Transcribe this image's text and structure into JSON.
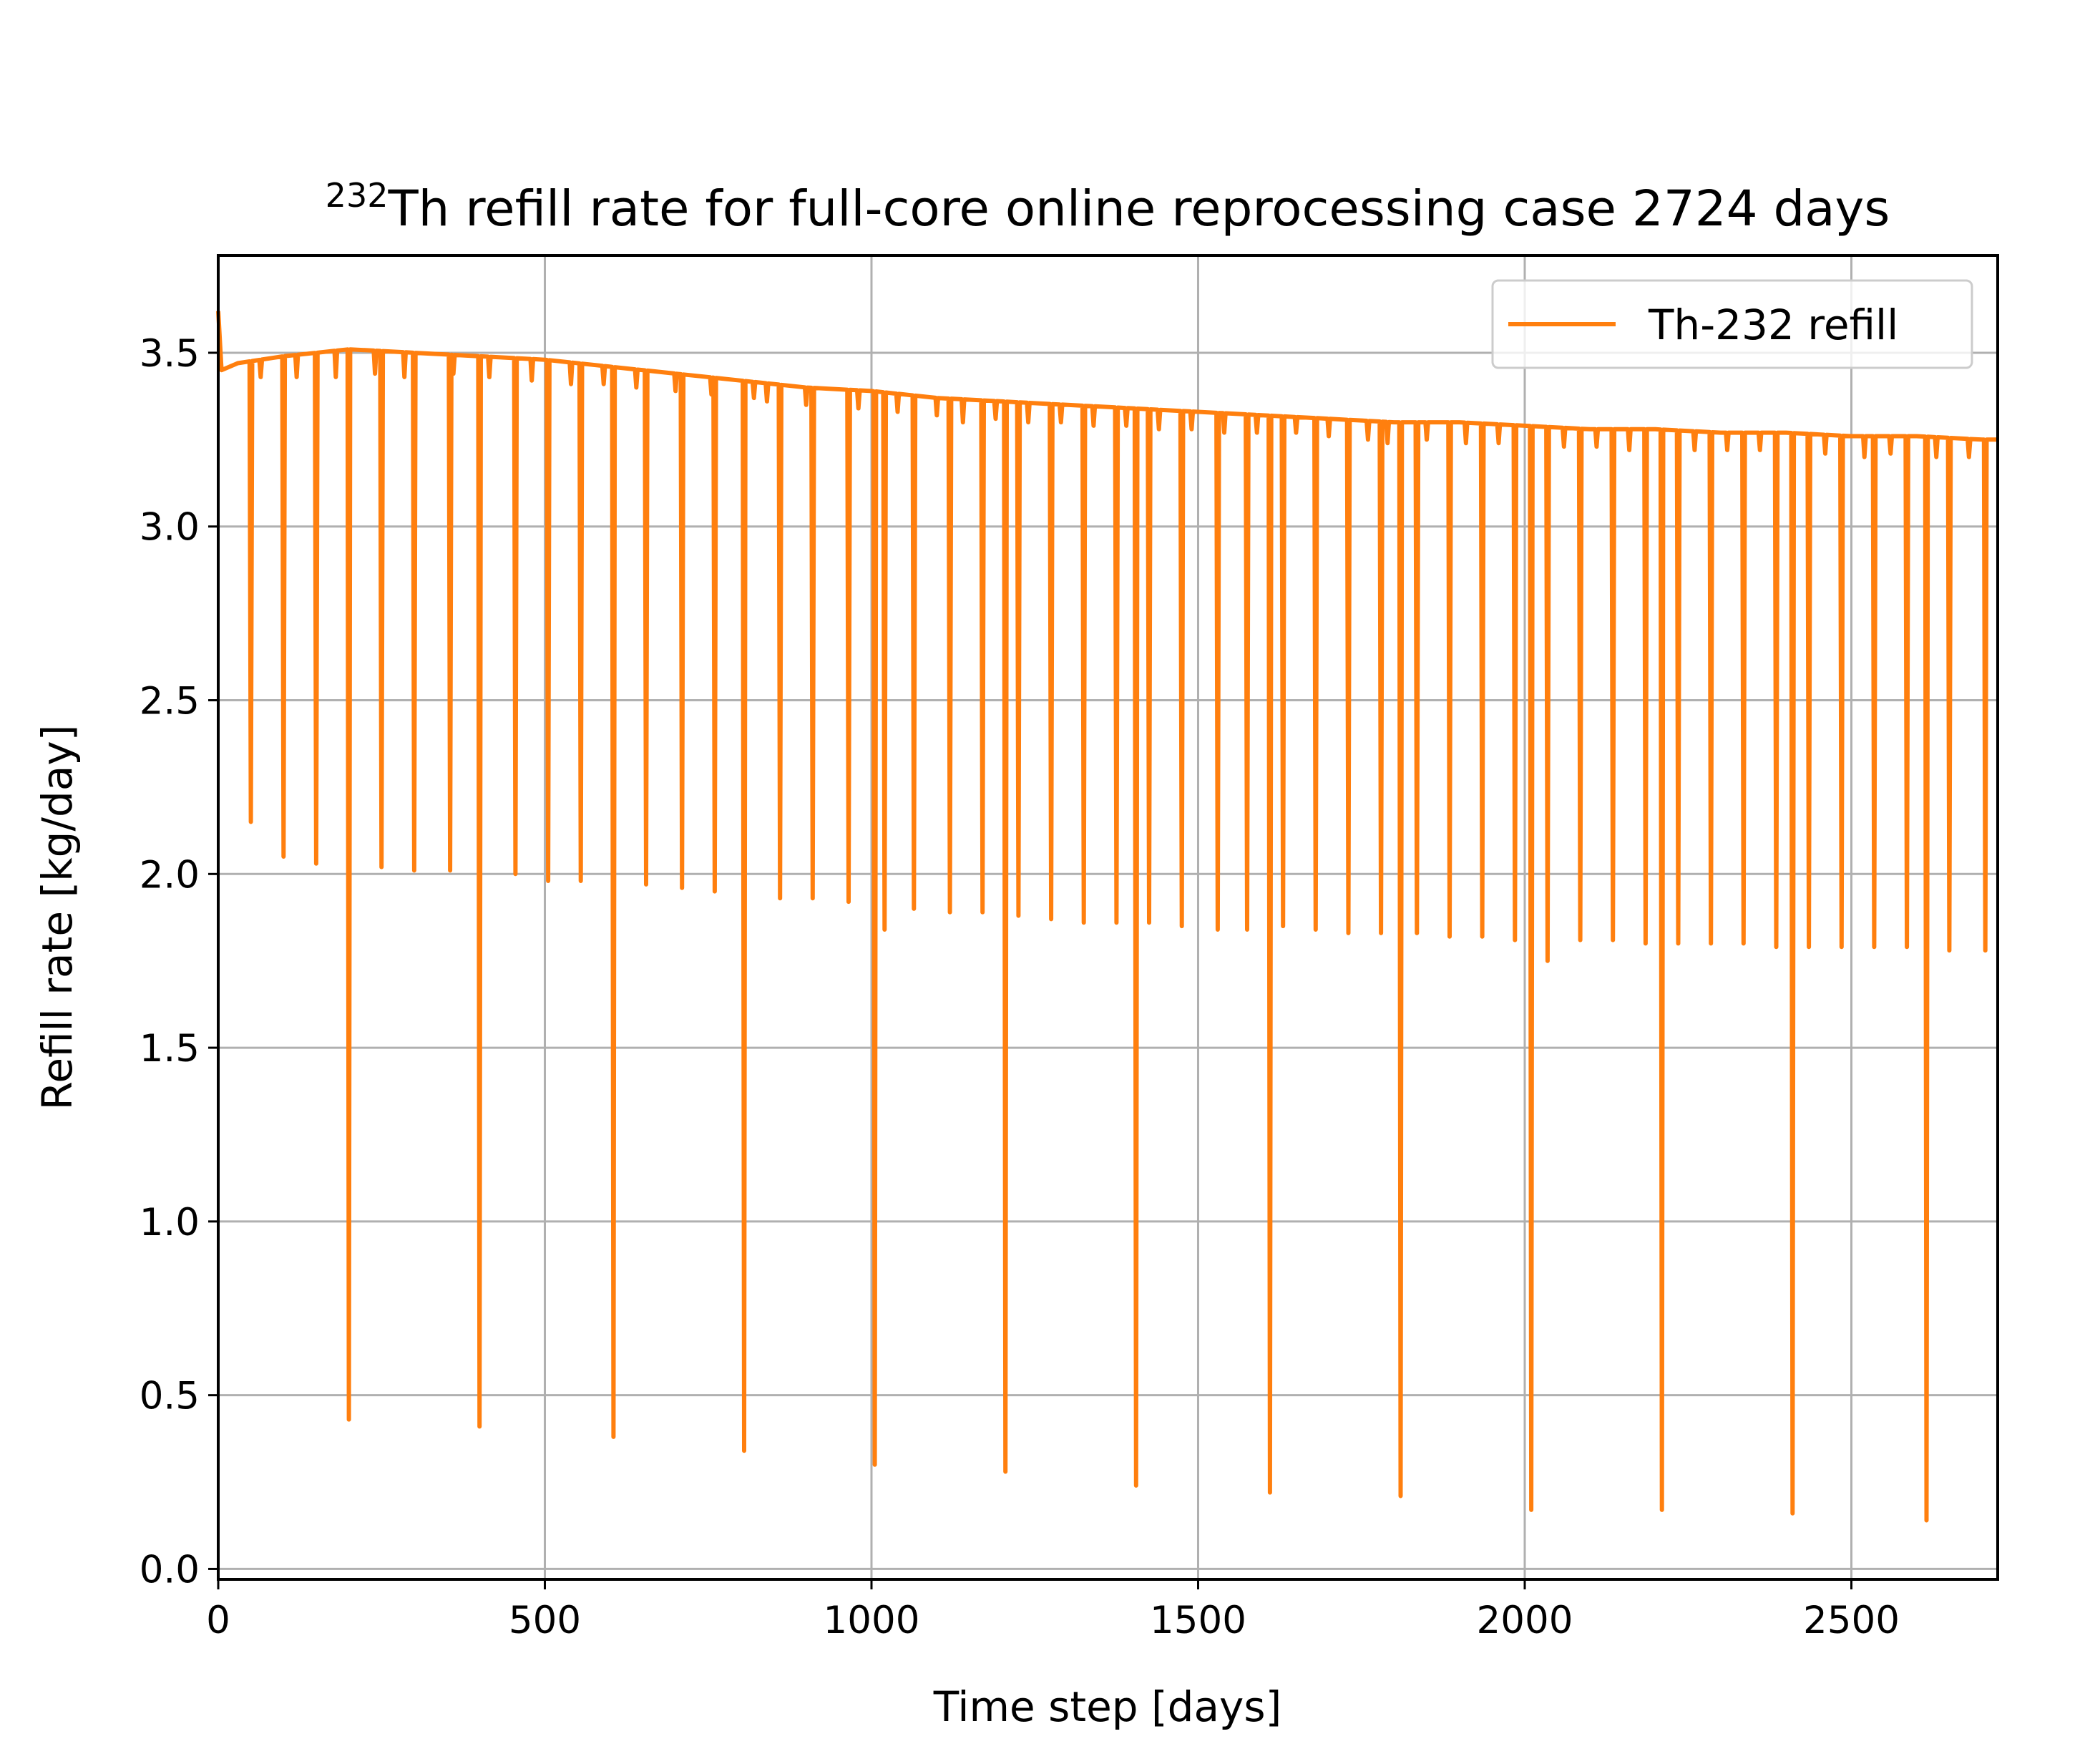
{
  "chart_data": {
    "type": "line",
    "title_superscript": "232",
    "title_main": "Th refill rate for full-core online reprocessing case 2724 days",
    "xlabel": "Time step [days]",
    "ylabel": "Refill rate [kg/day]",
    "xlim": [
      0,
      2724
    ],
    "ylim": [
      -0.03,
      3.78
    ],
    "xticks": [
      0,
      500,
      1000,
      1500,
      2000,
      2500
    ],
    "xtick_labels": [
      "0",
      "500",
      "1000",
      "1500",
      "2000",
      "2500"
    ],
    "yticks": [
      0.0,
      0.5,
      1.0,
      1.5,
      2.0,
      2.5,
      3.0,
      3.5
    ],
    "ytick_labels": [
      "0.0",
      "0.5",
      "1.0",
      "1.5",
      "2.0",
      "2.5",
      "3.0",
      "3.5"
    ],
    "grid": true,
    "legend_position": "upper right",
    "series": [
      {
        "name": "Th-232 refill",
        "color": "#ff7f0e",
        "baseline": [
          [
            0,
            3.62
          ],
          [
            5,
            3.45
          ],
          [
            30,
            3.47
          ],
          [
            100,
            3.49
          ],
          [
            150,
            3.5
          ],
          [
            200,
            3.51
          ],
          [
            300,
            3.5
          ],
          [
            400,
            3.49
          ],
          [
            500,
            3.48
          ],
          [
            600,
            3.46
          ],
          [
            700,
            3.44
          ],
          [
            800,
            3.42
          ],
          [
            900,
            3.4
          ],
          [
            1000,
            3.39
          ],
          [
            1100,
            3.37
          ],
          [
            1200,
            3.36
          ],
          [
            1300,
            3.35
          ],
          [
            1400,
            3.34
          ],
          [
            1500,
            3.33
          ],
          [
            1600,
            3.32
          ],
          [
            1700,
            3.31
          ],
          [
            1800,
            3.3
          ],
          [
            1900,
            3.3
          ],
          [
            2000,
            3.29
          ],
          [
            2100,
            3.28
          ],
          [
            2200,
            3.28
          ],
          [
            2300,
            3.27
          ],
          [
            2400,
            3.27
          ],
          [
            2500,
            3.26
          ],
          [
            2600,
            3.26
          ],
          [
            2700,
            3.25
          ],
          [
            2724,
            3.25
          ]
        ],
        "dips": [
          [
            50,
            2.15
          ],
          [
            100,
            2.05
          ],
          [
            150,
            2.03
          ],
          [
            200,
            0.43
          ],
          [
            250,
            2.02
          ],
          [
            300,
            2.01
          ],
          [
            355,
            2.01
          ],
          [
            400,
            0.41
          ],
          [
            455,
            2.0
          ],
          [
            505,
            1.98
          ],
          [
            555,
            1.98
          ],
          [
            605,
            0.38
          ],
          [
            655,
            1.97
          ],
          [
            710,
            1.96
          ],
          [
            760,
            1.95
          ],
          [
            805,
            0.34
          ],
          [
            860,
            1.93
          ],
          [
            910,
            1.93
          ],
          [
            965,
            1.92
          ],
          [
            1005,
            0.3
          ],
          [
            1020,
            1.84
          ],
          [
            1065,
            1.9
          ],
          [
            1120,
            1.89
          ],
          [
            1170,
            1.89
          ],
          [
            1205,
            0.28
          ],
          [
            1225,
            1.88
          ],
          [
            1275,
            1.87
          ],
          [
            1325,
            1.86
          ],
          [
            1375,
            1.86
          ],
          [
            1405,
            0.24
          ],
          [
            1425,
            1.86
          ],
          [
            1475,
            1.85
          ],
          [
            1530,
            1.84
          ],
          [
            1575,
            1.84
          ],
          [
            1610,
            0.22
          ],
          [
            1630,
            1.85
          ],
          [
            1680,
            1.84
          ],
          [
            1730,
            1.83
          ],
          [
            1780,
            1.83
          ],
          [
            1810,
            0.21
          ],
          [
            1835,
            1.83
          ],
          [
            1885,
            1.82
          ],
          [
            1935,
            1.82
          ],
          [
            1985,
            1.81
          ],
          [
            2010,
            0.17
          ],
          [
            2035,
            1.75
          ],
          [
            2085,
            1.81
          ],
          [
            2135,
            1.81
          ],
          [
            2185,
            1.8
          ],
          [
            2210,
            0.17
          ],
          [
            2235,
            1.8
          ],
          [
            2285,
            1.8
          ],
          [
            2335,
            1.8
          ],
          [
            2385,
            1.79
          ],
          [
            2410,
            0.16
          ],
          [
            2435,
            1.79
          ],
          [
            2485,
            1.79
          ],
          [
            2535,
            1.79
          ],
          [
            2585,
            1.79
          ],
          [
            2615,
            0.14
          ],
          [
            2650,
            1.78
          ],
          [
            2705,
            1.78
          ]
        ],
        "small_dips": [
          [
            65,
            3.43
          ],
          [
            120,
            3.43
          ],
          [
            180,
            3.43
          ],
          [
            240,
            3.44
          ],
          [
            285,
            3.43
          ],
          [
            360,
            3.44
          ],
          [
            415,
            3.43
          ],
          [
            480,
            3.42
          ],
          [
            540,
            3.41
          ],
          [
            590,
            3.41
          ],
          [
            640,
            3.4
          ],
          [
            700,
            3.39
          ],
          [
            755,
            3.38
          ],
          [
            820,
            3.37
          ],
          [
            840,
            3.36
          ],
          [
            900,
            3.35
          ],
          [
            980,
            3.34
          ],
          [
            1040,
            3.33
          ],
          [
            1100,
            3.32
          ],
          [
            1140,
            3.3
          ],
          [
            1190,
            3.31
          ],
          [
            1240,
            3.3
          ],
          [
            1290,
            3.3
          ],
          [
            1340,
            3.29
          ],
          [
            1390,
            3.29
          ],
          [
            1440,
            3.28
          ],
          [
            1490,
            3.28
          ],
          [
            1540,
            3.27
          ],
          [
            1590,
            3.27
          ],
          [
            1650,
            3.27
          ],
          [
            1700,
            3.26
          ],
          [
            1760,
            3.25
          ],
          [
            1790,
            3.24
          ],
          [
            1850,
            3.25
          ],
          [
            1910,
            3.24
          ],
          [
            1960,
            3.24
          ],
          [
            2060,
            3.23
          ],
          [
            2110,
            3.23
          ],
          [
            2160,
            3.22
          ],
          [
            2260,
            3.22
          ],
          [
            2310,
            3.22
          ],
          [
            2360,
            3.22
          ],
          [
            2460,
            3.21
          ],
          [
            2520,
            3.2
          ],
          [
            2560,
            3.21
          ],
          [
            2630,
            3.2
          ],
          [
            2680,
            3.2
          ]
        ]
      }
    ]
  }
}
